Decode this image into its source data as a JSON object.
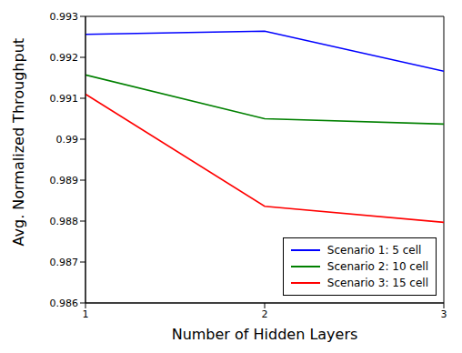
{
  "chart_data": {
    "type": "line",
    "x_label": "Number of Hidden Layers",
    "y_label": "Avg. Normalized Throughput",
    "x": [
      1,
      2,
      3
    ],
    "series": [
      {
        "name": "Scenario 1: 5 cell",
        "color": "#0000ff",
        "values": [
          0.99256,
          0.99264,
          0.99166
        ]
      },
      {
        "name": "Scenario 2: 10 cell",
        "color": "#008000",
        "values": [
          0.99157,
          0.9905,
          0.99037
        ]
      },
      {
        "name": "Scenario 3: 15 cell",
        "color": "#ff0000",
        "values": [
          0.9911,
          0.98836,
          0.98797
        ]
      }
    ],
    "xlim": [
      1,
      3
    ],
    "xticks": [
      1,
      2,
      3
    ],
    "ylim": [
      0.986,
      0.993
    ],
    "yticks": [
      0.986,
      0.987,
      0.988,
      0.989,
      0.99,
      0.991,
      0.992,
      0.993
    ],
    "grid": false,
    "legend": "lower right"
  }
}
